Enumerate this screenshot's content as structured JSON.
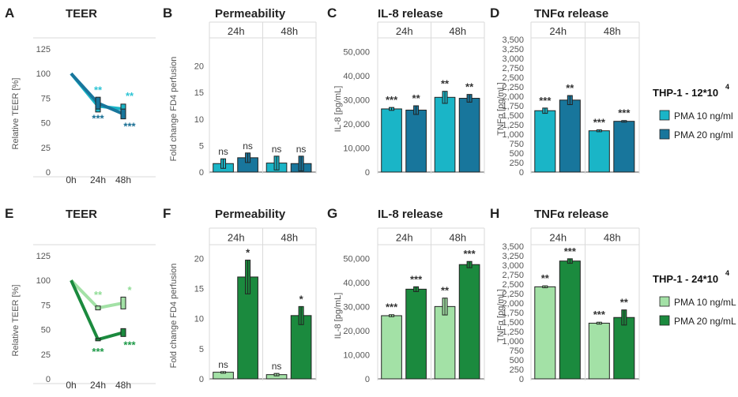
{
  "colors": {
    "teal_light": "#1ab5c7",
    "teal_dark": "#18769c",
    "green_light": "#a3e1a6",
    "green_dark": "#1b8a3e",
    "star_light_teal": "#2ec4d4",
    "star_dark_teal": "#1a6f94",
    "star_light_green": "#8fdc95",
    "star_dark_green": "#1e9a48",
    "grid": "#dadada",
    "axis_text": "#555555"
  },
  "legends": [
    {
      "title": "THP-1 - 12*10",
      "title_sup": "4",
      "items": [
        "PMA 10 ng/ml",
        "PMA 20 ng/ml"
      ]
    },
    {
      "title": "THP-1 - 24*10",
      "title_sup": "4",
      "items": [
        "PMA 10 ng/mL",
        "PMA 20 ng/mL"
      ]
    }
  ],
  "chart_data": [
    {
      "letter": "A",
      "type": "line",
      "title": "TEER",
      "ylabel": "Relative TEER [%]",
      "ylim": [
        0,
        125
      ],
      "yticks": [
        "0",
        "25",
        "50",
        "75",
        "100",
        "125"
      ],
      "categories": [
        "0h",
        "24h",
        "48h"
      ],
      "series": [
        {
          "name": "PMA 10 ng/ml",
          "values": [
            100,
            67,
            64
          ],
          "err": [
            0,
            6,
            5
          ],
          "sig": [
            "",
            "**",
            "**"
          ]
        },
        {
          "name": "PMA 20 ng/ml",
          "values": [
            100,
            70,
            59
          ],
          "err": [
            0,
            6,
            5
          ],
          "sig": [
            "",
            "***",
            "***"
          ]
        }
      ]
    },
    {
      "letter": "B",
      "type": "bar",
      "title": "Permeability",
      "ylabel": "Fold change FD4 perfusion",
      "ylim": [
        0,
        25
      ],
      "yticks": [
        "0",
        "5",
        "10",
        "15",
        "20"
      ],
      "groups": [
        "24h",
        "48h"
      ],
      "series": [
        {
          "name": "PMA 10 ng/ml",
          "values": [
            1.6,
            1.7
          ],
          "err": [
            0.9,
            1.3
          ],
          "sig": [
            "ns",
            "ns"
          ]
        },
        {
          "name": "PMA 20 ng/ml",
          "values": [
            2.7,
            1.6
          ],
          "err": [
            0.9,
            1.4
          ],
          "sig": [
            "ns",
            "ns"
          ]
        }
      ]
    },
    {
      "letter": "C",
      "type": "bar",
      "title": "IL-8 release",
      "ylabel": "IL-8 [pg/mL]",
      "ylim": [
        0,
        55000
      ],
      "yticks": [
        "0",
        "10,000",
        "20,000",
        "30,000",
        "40,000",
        "50,000"
      ],
      "groups": [
        "24h",
        "48h"
      ],
      "series": [
        {
          "name": "PMA 10 ng/ml",
          "values": [
            26200,
            31000
          ],
          "err": [
            600,
            2500
          ],
          "sig": [
            "***",
            "**"
          ]
        },
        {
          "name": "PMA 20 ng/ml",
          "values": [
            25700,
            30600
          ],
          "err": [
            1800,
            1600
          ],
          "sig": [
            "**",
            "**"
          ]
        }
      ]
    },
    {
      "letter": "D",
      "type": "bar",
      "title": "TNFα release",
      "ylabel": "TNFα [pg/mL]",
      "ylim": [
        0,
        3500
      ],
      "yticks": [
        "0",
        "250",
        "500",
        "750",
        "1,000",
        "1,250",
        "1,500",
        "1,750",
        "2,000",
        "2,250",
        "2,500",
        "2,750",
        "3,000",
        "3,250",
        "3,500"
      ],
      "groups": [
        "24h",
        "48h"
      ],
      "series": [
        {
          "name": "PMA 10 ng/ml",
          "values": [
            1620,
            1090
          ],
          "err": [
            70,
            25
          ],
          "sig": [
            "***",
            "***"
          ]
        },
        {
          "name": "PMA 20 ng/ml",
          "values": [
            1900,
            1340
          ],
          "err": [
            120,
            20
          ],
          "sig": [
            "**",
            "***"
          ]
        }
      ]
    },
    {
      "letter": "E",
      "type": "line",
      "title": "TEER",
      "ylabel": "Relative TEER [%]",
      "ylim": [
        0,
        125
      ],
      "yticks": [
        "0",
        "25",
        "50",
        "75",
        "100",
        "125"
      ],
      "categories": [
        "0h",
        "24h",
        "48h"
      ],
      "series": [
        {
          "name": "PMA 10 ng/mL",
          "values": [
            100,
            72,
            77
          ],
          "err": [
            0,
            2,
            6
          ],
          "sig": [
            "",
            "**",
            "*"
          ]
        },
        {
          "name": "PMA 20 ng/mL",
          "values": [
            100,
            40,
            47
          ],
          "err": [
            0,
            1,
            4
          ],
          "sig": [
            "",
            "***",
            "***"
          ]
        }
      ]
    },
    {
      "letter": "F",
      "type": "bar",
      "title": "Permeability",
      "ylabel": "Fold change FD4 perfusion",
      "ylim": [
        0,
        22
      ],
      "yticks": [
        "0",
        "5",
        "10",
        "15",
        "20"
      ],
      "groups": [
        "24h",
        "48h"
      ],
      "series": [
        {
          "name": "PMA 10 ng/mL",
          "values": [
            1.1,
            0.7
          ],
          "err": [
            0.1,
            0.2
          ],
          "sig": [
            "ns",
            "ns"
          ]
        },
        {
          "name": "PMA 20 ng/mL",
          "values": [
            16.9,
            10.5
          ],
          "err": [
            2.8,
            1.5
          ],
          "sig": [
            "*",
            "*"
          ]
        }
      ]
    },
    {
      "letter": "G",
      "type": "bar",
      "title": "IL-8 release",
      "ylabel": "IL-8 [pg/mL]",
      "ylim": [
        0,
        55000
      ],
      "yticks": [
        "0",
        "10,000",
        "20,000",
        "30,000",
        "40,000",
        "50,000"
      ],
      "groups": [
        "24h",
        "48h"
      ],
      "series": [
        {
          "name": "PMA 10 ng/mL",
          "values": [
            26200,
            30000
          ],
          "err": [
            400,
            3500
          ],
          "sig": [
            "***",
            "**"
          ]
        },
        {
          "name": "PMA 20 ng/mL",
          "values": [
            37200,
            47400
          ],
          "err": [
            1000,
            1300
          ],
          "sig": [
            "***",
            "***"
          ]
        }
      ]
    },
    {
      "letter": "H",
      "type": "bar",
      "title": "TNFα release",
      "ylabel": "TNFα [pg/mL]",
      "ylim": [
        0,
        3500
      ],
      "yticks": [
        "0",
        "250",
        "500",
        "750",
        "1,000",
        "1,250",
        "1,500",
        "1,750",
        "2,000",
        "2,250",
        "2,500",
        "2,750",
        "3,000",
        "3,250",
        "3,500"
      ],
      "groups": [
        "24h",
        "48h"
      ],
      "series": [
        {
          "name": "PMA 10 ng/mL",
          "values": [
            2430,
            1470
          ],
          "err": [
            25,
            25
          ],
          "sig": [
            "**",
            "***"
          ]
        },
        {
          "name": "PMA 20 ng/mL",
          "values": [
            3110,
            1620
          ],
          "err": [
            60,
            200
          ],
          "sig": [
            "***",
            "**"
          ]
        }
      ]
    }
  ]
}
